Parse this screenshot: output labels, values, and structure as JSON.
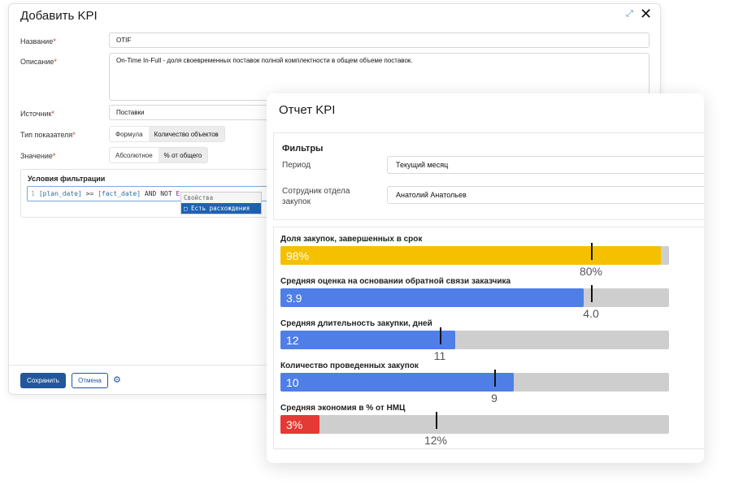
{
  "dialog": {
    "title": "Добавить KPI",
    "expand_icon": "expand-icon",
    "close_icon": "close-icon",
    "fields": {
      "name_label": "Название",
      "name_value": "OTIF",
      "description_label": "Описание",
      "description_value": "On-Time In-Full - доля своевременных поставок полной комплектности в общем объеме поставок.",
      "source_label": "Источник",
      "source_value": "Поставки",
      "indicator_type_label": "Тип показателя",
      "indicator_type_options": [
        "Формула",
        "Количество объектов"
      ],
      "indicator_type_selected": "Количество объектов",
      "value_label": "Значение",
      "value_options": [
        "Абсолютное",
        "% от общего"
      ],
      "value_selected": "% от общего",
      "required_mark": "*"
    },
    "filter": {
      "title": "Условия фильтрации",
      "line_number": "1",
      "code_field1": "[plan_date]",
      "code_op": ">=",
      "code_field2": "[fact_date]",
      "code_and_not": "AND NOT",
      "code_tail": "Есть",
      "autocomplete_header": "Свойства",
      "autocomplete_item": "□ Есть расхождения"
    },
    "footer": {
      "save_label": "Сохранить",
      "cancel_label": "Отмена",
      "settings_icon": "gear-icon"
    }
  },
  "report": {
    "title": "Отчет KPI",
    "filters": {
      "title": "Фильтры",
      "period_label": "Период",
      "period_value": "Текущий месяц",
      "employee_label": "Сотрудник отдела закупок",
      "employee_value": "Анатолий Анатольев"
    },
    "metrics": [
      {
        "title": "Доля закупок, завершенных в срок",
        "value_label": "98%",
        "target_label": "80%",
        "fill_fraction": 0.98,
        "target_fraction": 0.8,
        "color": "#f5c000"
      },
      {
        "title": "Средняя оценка на основании обратной связи заказчика",
        "value_label": "3.9",
        "target_label": "4.0",
        "fill_fraction": 0.78,
        "target_fraction": 0.8,
        "color": "#4f7fe6"
      },
      {
        "title": "Средняя длительность закупки, дней",
        "value_label": "12",
        "target_label": "11",
        "fill_fraction": 0.45,
        "target_fraction": 0.41,
        "color": "#4f7fe6"
      },
      {
        "title": "Количество проведенных закупок",
        "value_label": "10",
        "target_label": "9",
        "fill_fraction": 0.6,
        "target_fraction": 0.55,
        "color": "#4f7fe6"
      },
      {
        "title": "Средняя экономия в % от НМЦ",
        "value_label": "3%",
        "target_label": "12%",
        "fill_fraction": 0.1,
        "target_fraction": 0.4,
        "color": "#e53935"
      }
    ]
  }
}
